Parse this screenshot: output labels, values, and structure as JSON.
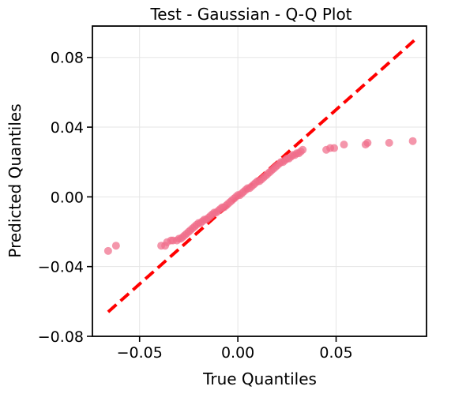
{
  "chart_data": {
    "type": "scatter",
    "title": "Test - Gaussian - Q-Q Plot",
    "xlabel": "True Quantiles",
    "ylabel": "Predicted Quantiles",
    "xlim": [
      -0.074,
      0.096
    ],
    "ylim": [
      -0.08,
      0.098
    ],
    "xticks": [
      -0.05,
      0.0,
      0.05
    ],
    "xtick_labels": [
      "−0.05",
      "0.00",
      "0.05"
    ],
    "yticks": [
      -0.08,
      -0.04,
      0.0,
      0.04,
      0.08
    ],
    "ytick_labels": [
      "−0.08",
      "−0.04",
      "0.00",
      "0.04",
      "0.08"
    ],
    "grid": true,
    "colors": {
      "points": "#f06e8a",
      "reference_line": "#ff0000",
      "grid": "#e5e5e5",
      "axes": "#000000"
    },
    "reference_line": {
      "x": [
        -0.066,
        0.09
      ],
      "y": [
        -0.066,
        0.09
      ],
      "style": "dashed"
    },
    "points": {
      "x": [
        -0.066,
        -0.062,
        -0.039,
        -0.037,
        -0.036,
        -0.034,
        -0.033,
        -0.031,
        -0.03,
        -0.029,
        -0.028,
        -0.027,
        -0.026,
        -0.025,
        -0.024,
        -0.023,
        -0.022,
        -0.021,
        -0.02,
        -0.019,
        -0.018,
        -0.017,
        -0.016,
        -0.015,
        -0.014,
        -0.013,
        -0.012,
        -0.011,
        -0.01,
        -0.009,
        -0.008,
        -0.007,
        -0.006,
        -0.005,
        -0.004,
        -0.003,
        -0.002,
        -0.001,
        0.0,
        0.001,
        0.002,
        0.003,
        0.004,
        0.005,
        0.006,
        0.007,
        0.008,
        0.009,
        0.01,
        0.011,
        0.012,
        0.013,
        0.014,
        0.015,
        0.016,
        0.017,
        0.018,
        0.019,
        0.02,
        0.021,
        0.022,
        0.023,
        0.024,
        0.025,
        0.026,
        0.027,
        0.028,
        0.029,
        0.03,
        0.031,
        0.032,
        0.033,
        0.045,
        0.047,
        0.049,
        0.054,
        0.065,
        0.066,
        0.077,
        0.089
      ],
      "y": [
        -0.031,
        -0.028,
        -0.028,
        -0.028,
        -0.026,
        -0.025,
        -0.025,
        -0.025,
        -0.024,
        -0.024,
        -0.023,
        -0.022,
        -0.021,
        -0.02,
        -0.019,
        -0.018,
        -0.017,
        -0.016,
        -0.015,
        -0.015,
        -0.014,
        -0.013,
        -0.013,
        -0.012,
        -0.011,
        -0.01,
        -0.009,
        -0.009,
        -0.008,
        -0.007,
        -0.006,
        -0.006,
        -0.005,
        -0.004,
        -0.003,
        -0.002,
        -0.001,
        0.0,
        0.001,
        0.001,
        0.002,
        0.003,
        0.004,
        0.005,
        0.005,
        0.006,
        0.007,
        0.008,
        0.009,
        0.009,
        0.01,
        0.011,
        0.012,
        0.013,
        0.014,
        0.015,
        0.016,
        0.017,
        0.018,
        0.019,
        0.02,
        0.02,
        0.021,
        0.022,
        0.022,
        0.023,
        0.024,
        0.024,
        0.025,
        0.025,
        0.026,
        0.027,
        0.027,
        0.028,
        0.028,
        0.03,
        0.03,
        0.031,
        0.031,
        0.032
      ]
    }
  }
}
